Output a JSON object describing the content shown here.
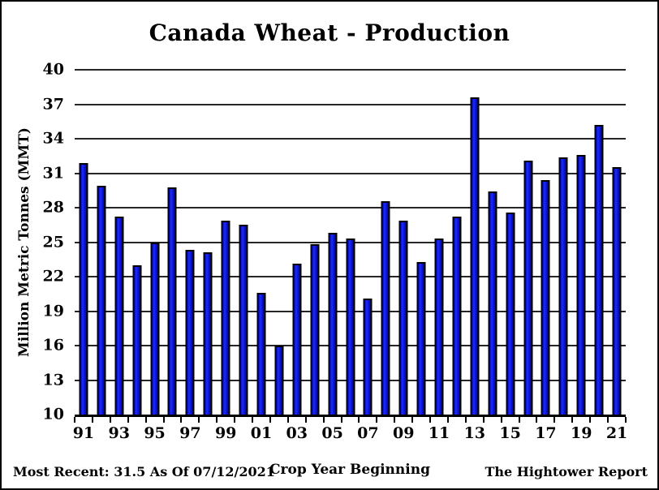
{
  "title": "Canada Wheat - Production",
  "footer": {
    "most_recent": "Most Recent: 31.5 As Of 07/12/2021",
    "source": "The Hightower Report"
  },
  "chart_data": {
    "type": "bar",
    "title": "Canada Wheat - Production",
    "xlabel": "Crop Year Beginning",
    "ylabel": "Million Metric Tonnes (MMT)",
    "ylim": [
      10,
      40
    ],
    "yticks": [
      10,
      13,
      16,
      19,
      22,
      25,
      28,
      31,
      34,
      37,
      40
    ],
    "grid": true,
    "legend_position": "none",
    "bar_color": "#0a17e4",
    "bar_border_color": "#000000",
    "categories": [
      "91",
      "92",
      "93",
      "94",
      "95",
      "96",
      "97",
      "98",
      "99",
      "00",
      "01",
      "02",
      "03",
      "04",
      "05",
      "06",
      "07",
      "08",
      "09",
      "10",
      "11",
      "12",
      "13",
      "14",
      "15",
      "16",
      "17",
      "18",
      "19",
      "20",
      "21"
    ],
    "x_labels_shown": [
      "91",
      "93",
      "95",
      "97",
      "99",
      "01",
      "03",
      "05",
      "07",
      "09",
      "11",
      "13",
      "15",
      "17",
      "19",
      "21"
    ],
    "values": [
      31.9,
      29.9,
      27.2,
      23.0,
      25.0,
      29.8,
      24.3,
      24.1,
      26.9,
      26.5,
      20.6,
      16.0,
      23.1,
      24.8,
      25.8,
      25.3,
      20.1,
      28.6,
      26.9,
      23.3,
      25.3,
      27.2,
      37.6,
      29.4,
      27.6,
      32.1,
      30.4,
      32.4,
      32.6,
      35.2,
      31.5
    ]
  }
}
